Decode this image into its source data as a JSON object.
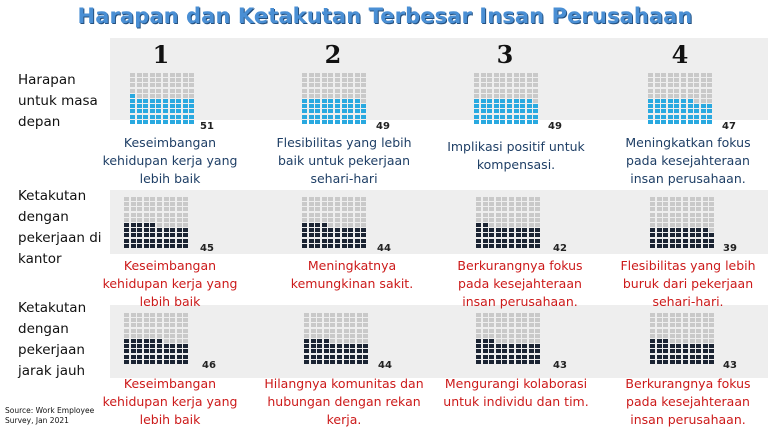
{
  "title": "Harapan dan Ketakutan Terbesar Insan Perusahaan",
  "rank_numbers": [
    "1",
    "2",
    "3",
    "4"
  ],
  "source": "Source: Work Employee Survey, Jan 2021",
  "colors": {
    "hope": "#29a9e0",
    "fear": "#1b2433",
    "empty": "#c9c9c9",
    "title": "#4a8fd4",
    "hope_text": "#1f3f66",
    "fear_text": "#cc1a1a"
  },
  "chart_data": {
    "type": "waffle",
    "rows": [
      {
        "label": "Harapan untuk masa depan",
        "kind": "hope",
        "values": [
          51,
          49,
          49,
          47
        ],
        "captions": [
          "Keseimbangan kehidupan kerja yang lebih baik",
          "Flesibilitas yang lebih baik untuk pekerjaan sehari-hari",
          "Implikasi positif untuk kompensasi.",
          "Meningkatkan fokus pada kesejahteraan insan perusahaan."
        ]
      },
      {
        "label": "Ketakutan dengan pekerjaan di kantor",
        "kind": "fear",
        "values": [
          45,
          44,
          42,
          39
        ],
        "captions": [
          "Keseimbangan kehidupan kerja yang lebih baik",
          "Meningkatnya kemungkinan sakit.",
          "Berkurangnya fokus pada kesejahteraan insan perusahaan.",
          "Flesibilitas yang lebih buruk dari pekerjaan sehari-hari."
        ]
      },
      {
        "label": "Ketakutan dengan pekerjaan jarak jauh",
        "kind": "fear",
        "values": [
          46,
          44,
          43,
          43
        ],
        "captions": [
          "Keseimbangan kehidupan kerja yang lebih baik",
          "Hilangnya komunitas dan hubungan dengan rekan kerja.",
          "Mengurangi kolaborasi untuk individu dan tim.",
          "Berkurangnya fokus pada kesejahteraan insan perusahaan."
        ]
      }
    ]
  }
}
